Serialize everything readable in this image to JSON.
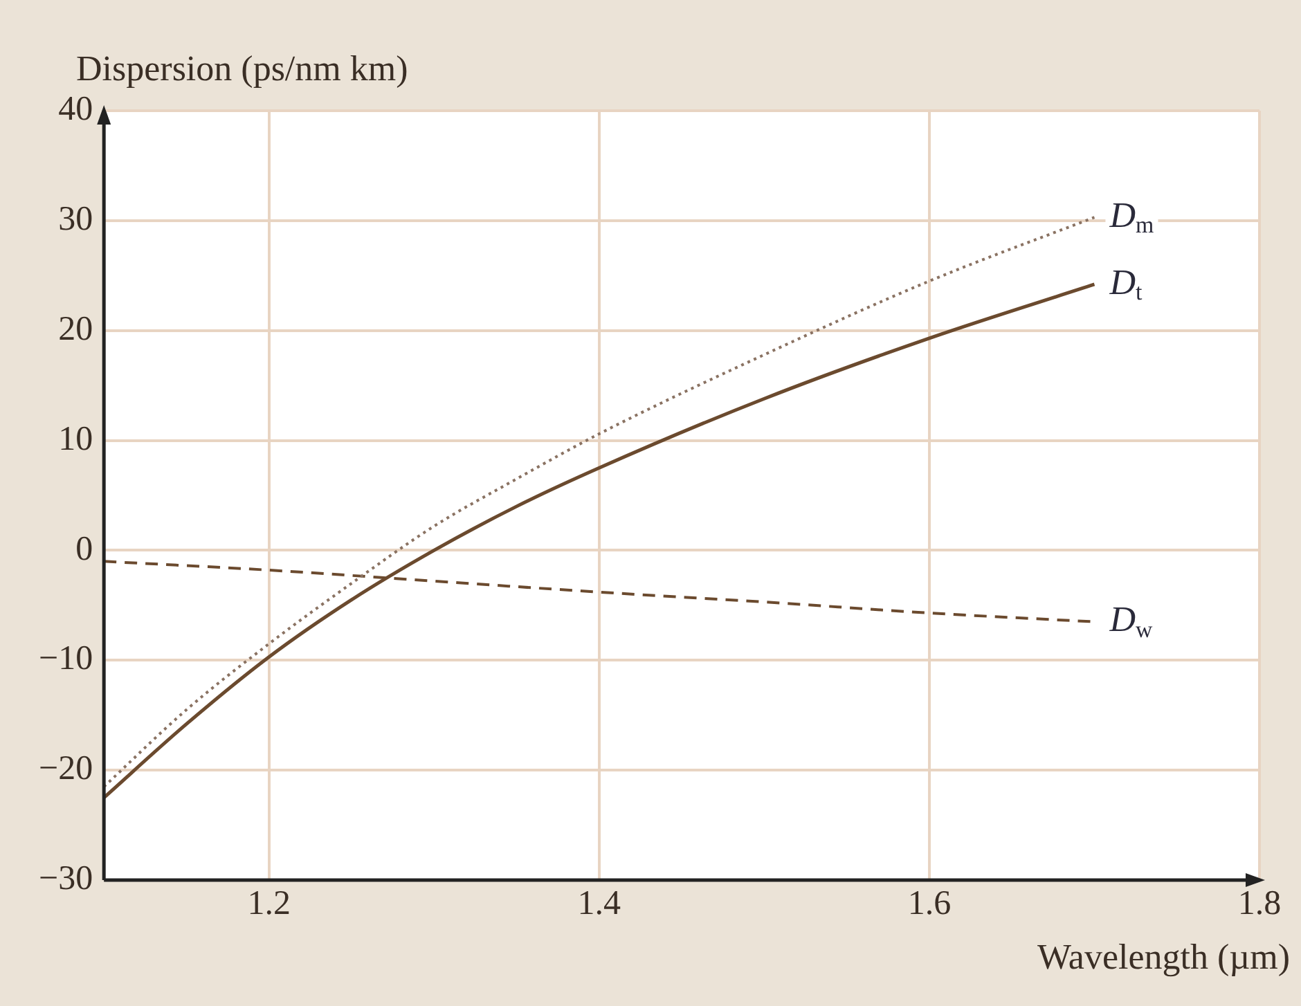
{
  "chart_data": {
    "type": "line",
    "xlabel": "Wavelength (µm)",
    "ylabel": "Dispersion (ps/nm km)",
    "xlim": [
      1.1,
      1.8
    ],
    "xticks": [
      1.2,
      1.4,
      1.6,
      1.8
    ],
    "ylim": [
      -30,
      40
    ],
    "yticks": [
      -30,
      -20,
      -10,
      0,
      10,
      20,
      30,
      40
    ],
    "grid": true,
    "legend": false,
    "marker": "none",
    "series": [
      {
        "name": "D$_{m}$",
        "color": "#8a7262",
        "line_style": "dotted",
        "x": [
          1.1,
          1.15,
          1.2,
          1.25,
          1.3,
          1.35,
          1.4,
          1.5,
          1.6,
          1.7
        ],
        "values": [
          -21.5,
          -14.5,
          -8.5,
          -3,
          2.2,
          6.5,
          10.6,
          17.8,
          24.5,
          30.3
        ]
      },
      {
        "name": "D$_{t}$",
        "color": "#6b4a2e",
        "line_style": "solid",
        "x": [
          1.1,
          1.15,
          1.2,
          1.25,
          1.3,
          1.35,
          1.4,
          1.5,
          1.6,
          1.7
        ],
        "values": [
          -22.5,
          -15.8,
          -9.7,
          -4.5,
          0,
          4,
          7.5,
          13.8,
          19.3,
          24.2
        ]
      },
      {
        "name": "D$_{w}$",
        "color": "#6b4a2e",
        "line_style": "dashed",
        "x": [
          1.1,
          1.2,
          1.3,
          1.4,
          1.5,
          1.6,
          1.7
        ],
        "values": [
          -1,
          -1.8,
          -2.8,
          -3.8,
          -4.7,
          -5.7,
          -6.5
        ]
      }
    ]
  }
}
